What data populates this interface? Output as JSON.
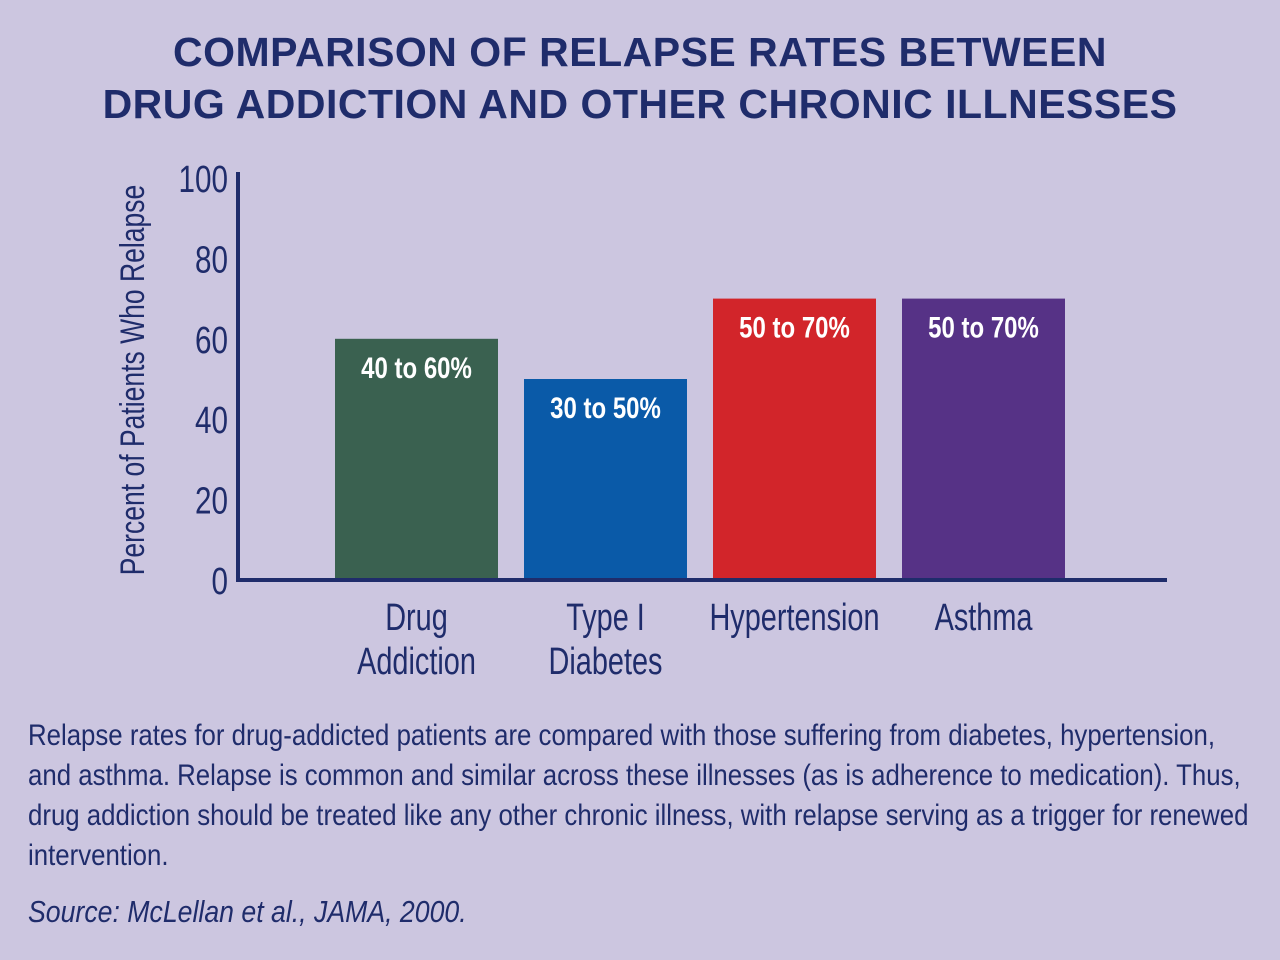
{
  "title": {
    "line1": "COMPARISON OF RELAPSE RATES BETWEEN",
    "line2": "DRUG ADDICTION AND OTHER CHRONIC ILLNESSES"
  },
  "chart_data": {
    "type": "bar",
    "ylabel": "Percent of Patients Who Relapse",
    "ylim": [
      0,
      100
    ],
    "yticks": [
      "0",
      "20",
      "40",
      "60",
      "80",
      "100"
    ],
    "grid": false,
    "categories": [
      [
        "Drug",
        "Addiction"
      ],
      [
        "Type I",
        "Diabetes"
      ],
      [
        "Hypertension"
      ],
      [
        "Asthma"
      ]
    ],
    "values": [
      60,
      50,
      70,
      70
    ],
    "data_labels": [
      "40 to 60%",
      "30 to 50%",
      "50 to 70%",
      "50 to 70%"
    ],
    "colors": [
      "#3a6150",
      "#0a5aa8",
      "#d2252a",
      "#563286"
    ]
  },
  "caption": "Relapse rates for drug-addicted patients are compared with those suffering from diabetes, hypertension, and asthma. Relapse is common and similar across these illnesses (as is adherence to medication). Thus, drug addiction should be treated like any other chronic illness, with relapse serving as a trigger for renewed intervention.",
  "source": "Source: McLellan et al., JAMA, 2000.",
  "axis_color": "#1f2c6b"
}
